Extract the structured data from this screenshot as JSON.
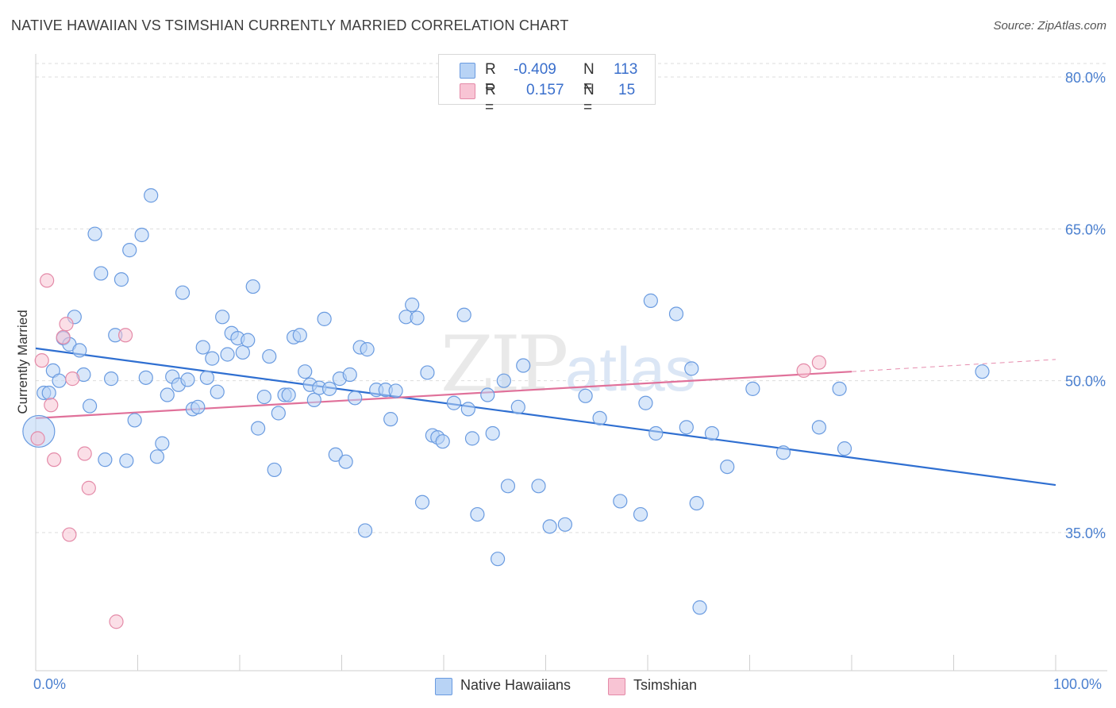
{
  "title": "NATIVE HAWAIIAN VS TSIMSHIAN CURRENTLY MARRIED CORRELATION CHART",
  "source": "Source: ZipAtlas.com",
  "watermark": "ZIPatlas",
  "stats": [
    {
      "r_label": "R =",
      "r_value": "-0.409",
      "n_label": "N =",
      "n_value": "113",
      "fill": "#b8d3f5",
      "stroke": "#6a9be0"
    },
    {
      "r_label": "R =",
      "r_value": "0.157",
      "n_label": "N =",
      "n_value": "15",
      "fill": "#f8c4d4",
      "stroke": "#e48aa8"
    }
  ],
  "legend": [
    {
      "label": "Native Hawaiians",
      "fill": "#b8d3f5",
      "stroke": "#6a9be0"
    },
    {
      "label": "Tsimshian",
      "fill": "#f8c4d4",
      "stroke": "#e48aa8"
    }
  ],
  "x_axis": {
    "min_label": "0.0%",
    "max_label": "100.0%"
  },
  "chart_data": {
    "type": "scatter",
    "title": "NATIVE HAWAIIAN VS TSIMSHIAN CURRENTLY MARRIED CORRELATION CHART",
    "xlabel": "",
    "ylabel": "Currently Married",
    "xlim": [
      0,
      100
    ],
    "ylim": [
      20,
      85
    ],
    "yticks": [
      35,
      50,
      65,
      80
    ],
    "ytick_labels": [
      "35.0%",
      "50.0%",
      "65.0%",
      "80.0%"
    ],
    "grid": "horizontal dashed",
    "legend_position": "bottom",
    "series": [
      {
        "name": "Native Hawaiians",
        "color": "#6a9be0",
        "fill": "#b8d3f5",
        "trend": {
          "x": [
            0,
            100
          ],
          "y": [
            53.2,
            39.7
          ],
          "color": "#2f6fd1"
        },
        "points": [
          {
            "x": 0.3,
            "y": 45.0,
            "big": true
          },
          {
            "x": 0.8,
            "y": 48.8
          },
          {
            "x": 1.3,
            "y": 48.8
          },
          {
            "x": 1.7,
            "y": 51.0
          },
          {
            "x": 2.3,
            "y": 50.0
          },
          {
            "x": 2.7,
            "y": 54.2
          },
          {
            "x": 3.3,
            "y": 53.6
          },
          {
            "x": 3.8,
            "y": 56.3
          },
          {
            "x": 4.3,
            "y": 53.0
          },
          {
            "x": 4.7,
            "y": 50.6
          },
          {
            "x": 5.3,
            "y": 47.5
          },
          {
            "x": 5.8,
            "y": 64.5
          },
          {
            "x": 6.4,
            "y": 60.6
          },
          {
            "x": 6.8,
            "y": 42.2
          },
          {
            "x": 7.4,
            "y": 50.2
          },
          {
            "x": 7.8,
            "y": 54.5
          },
          {
            "x": 8.4,
            "y": 60.0
          },
          {
            "x": 8.9,
            "y": 42.1
          },
          {
            "x": 9.2,
            "y": 62.9
          },
          {
            "x": 9.7,
            "y": 46.1
          },
          {
            "x": 10.4,
            "y": 64.4
          },
          {
            "x": 10.8,
            "y": 50.3
          },
          {
            "x": 11.3,
            "y": 68.3
          },
          {
            "x": 11.9,
            "y": 42.5
          },
          {
            "x": 12.4,
            "y": 43.8
          },
          {
            "x": 12.9,
            "y": 48.6
          },
          {
            "x": 13.4,
            "y": 50.4
          },
          {
            "x": 14.0,
            "y": 49.6
          },
          {
            "x": 14.4,
            "y": 58.7
          },
          {
            "x": 14.9,
            "y": 50.1
          },
          {
            "x": 15.4,
            "y": 47.2
          },
          {
            "x": 15.9,
            "y": 47.4
          },
          {
            "x": 16.4,
            "y": 53.3
          },
          {
            "x": 16.8,
            "y": 50.3
          },
          {
            "x": 17.3,
            "y": 52.2
          },
          {
            "x": 17.8,
            "y": 48.9
          },
          {
            "x": 18.3,
            "y": 56.3
          },
          {
            "x": 18.8,
            "y": 52.6
          },
          {
            "x": 19.2,
            "y": 54.7
          },
          {
            "x": 19.8,
            "y": 54.2
          },
          {
            "x": 20.3,
            "y": 52.8
          },
          {
            "x": 20.8,
            "y": 54.0
          },
          {
            "x": 21.3,
            "y": 59.3
          },
          {
            "x": 21.8,
            "y": 45.3
          },
          {
            "x": 22.4,
            "y": 48.4
          },
          {
            "x": 22.9,
            "y": 52.4
          },
          {
            "x": 23.4,
            "y": 41.2
          },
          {
            "x": 23.8,
            "y": 46.8
          },
          {
            "x": 24.4,
            "y": 48.6
          },
          {
            "x": 24.8,
            "y": 48.6
          },
          {
            "x": 25.3,
            "y": 54.3
          },
          {
            "x": 25.9,
            "y": 54.5
          },
          {
            "x": 26.4,
            "y": 50.9
          },
          {
            "x": 26.9,
            "y": 49.6
          },
          {
            "x": 27.3,
            "y": 48.1
          },
          {
            "x": 27.8,
            "y": 49.3
          },
          {
            "x": 28.3,
            "y": 56.1
          },
          {
            "x": 28.8,
            "y": 49.2
          },
          {
            "x": 29.4,
            "y": 42.7
          },
          {
            "x": 29.8,
            "y": 50.2
          },
          {
            "x": 30.4,
            "y": 42.0
          },
          {
            "x": 30.8,
            "y": 50.6
          },
          {
            "x": 31.3,
            "y": 48.3
          },
          {
            "x": 31.8,
            "y": 53.3
          },
          {
            "x": 32.3,
            "y": 35.2
          },
          {
            "x": 32.5,
            "y": 53.1
          },
          {
            "x": 33.4,
            "y": 49.1
          },
          {
            "x": 34.3,
            "y": 49.1
          },
          {
            "x": 34.8,
            "y": 46.2
          },
          {
            "x": 35.3,
            "y": 49.0
          },
          {
            "x": 36.3,
            "y": 56.3
          },
          {
            "x": 36.9,
            "y": 57.5
          },
          {
            "x": 37.4,
            "y": 56.2
          },
          {
            "x": 37.9,
            "y": 38.0
          },
          {
            "x": 38.4,
            "y": 50.8
          },
          {
            "x": 38.9,
            "y": 44.6
          },
          {
            "x": 39.4,
            "y": 44.4
          },
          {
            "x": 39.9,
            "y": 44.0
          },
          {
            "x": 41.0,
            "y": 47.8
          },
          {
            "x": 42.0,
            "y": 56.5
          },
          {
            "x": 42.4,
            "y": 47.2
          },
          {
            "x": 42.8,
            "y": 44.3
          },
          {
            "x": 43.3,
            "y": 36.8
          },
          {
            "x": 44.3,
            "y": 48.6
          },
          {
            "x": 44.8,
            "y": 44.8
          },
          {
            "x": 45.3,
            "y": 32.4
          },
          {
            "x": 45.9,
            "y": 50.0
          },
          {
            "x": 46.3,
            "y": 39.6
          },
          {
            "x": 47.3,
            "y": 47.4
          },
          {
            "x": 47.8,
            "y": 51.5
          },
          {
            "x": 49.3,
            "y": 39.6
          },
          {
            "x": 50.4,
            "y": 35.6
          },
          {
            "x": 51.9,
            "y": 35.8
          },
          {
            "x": 53.9,
            "y": 48.5
          },
          {
            "x": 55.3,
            "y": 46.3
          },
          {
            "x": 57.3,
            "y": 38.1
          },
          {
            "x": 59.3,
            "y": 36.8
          },
          {
            "x": 59.8,
            "y": 47.8
          },
          {
            "x": 60.3,
            "y": 57.9
          },
          {
            "x": 60.8,
            "y": 44.8
          },
          {
            "x": 62.8,
            "y": 56.6
          },
          {
            "x": 63.8,
            "y": 45.4
          },
          {
            "x": 64.3,
            "y": 51.2
          },
          {
            "x": 64.8,
            "y": 37.9
          },
          {
            "x": 65.1,
            "y": 27.6
          },
          {
            "x": 66.3,
            "y": 44.8
          },
          {
            "x": 67.8,
            "y": 41.5
          },
          {
            "x": 70.3,
            "y": 49.2
          },
          {
            "x": 73.3,
            "y": 42.9
          },
          {
            "x": 76.8,
            "y": 45.4
          },
          {
            "x": 78.8,
            "y": 49.2
          },
          {
            "x": 79.3,
            "y": 43.3
          },
          {
            "x": 92.8,
            "y": 50.9
          }
        ]
      },
      {
        "name": "Tsimshian",
        "color": "#e48aa8",
        "fill": "#f8c4d4",
        "trend": {
          "x": [
            0,
            80
          ],
          "y": [
            46.3,
            50.9
          ],
          "color": "#e0719a",
          "dashed_extension_to": [
            100,
            52.1
          ]
        },
        "points": [
          {
            "x": 0.2,
            "y": 44.3
          },
          {
            "x": 0.6,
            "y": 52.0
          },
          {
            "x": 1.1,
            "y": 59.9
          },
          {
            "x": 1.5,
            "y": 47.6
          },
          {
            "x": 1.8,
            "y": 42.2
          },
          {
            "x": 2.7,
            "y": 54.3
          },
          {
            "x": 3.0,
            "y": 55.6
          },
          {
            "x": 3.3,
            "y": 34.8
          },
          {
            "x": 3.6,
            "y": 50.2
          },
          {
            "x": 4.8,
            "y": 42.8
          },
          {
            "x": 5.2,
            "y": 39.4
          },
          {
            "x": 7.9,
            "y": 26.2
          },
          {
            "x": 8.8,
            "y": 54.5
          },
          {
            "x": 75.3,
            "y": 51.0
          },
          {
            "x": 76.8,
            "y": 51.8
          }
        ]
      }
    ]
  }
}
